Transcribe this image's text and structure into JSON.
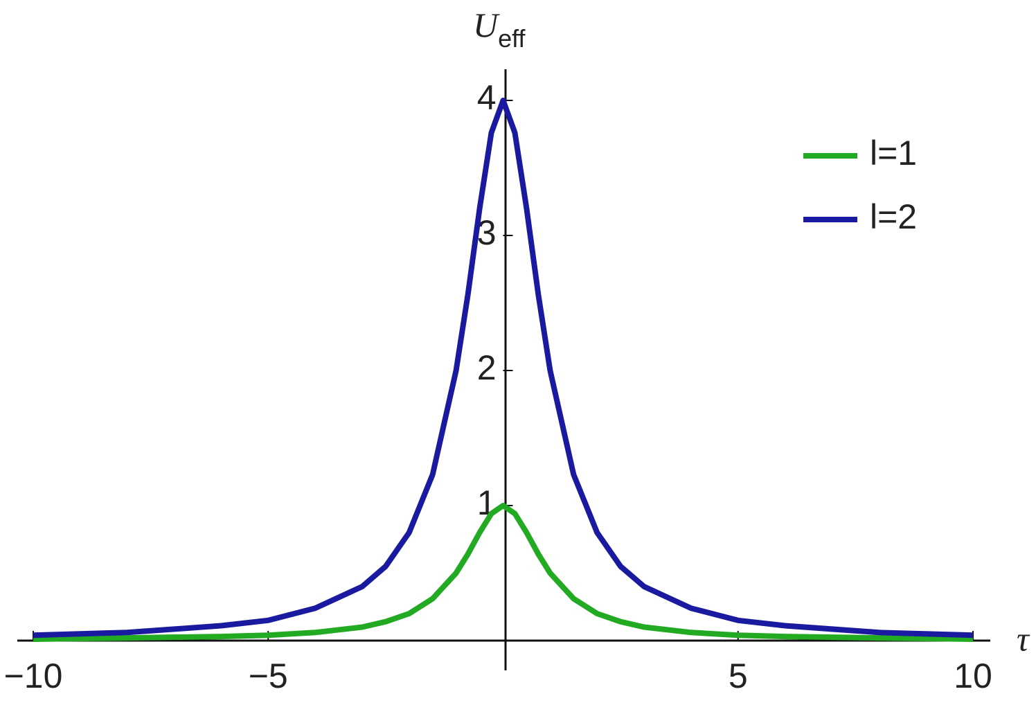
{
  "chart_data": {
    "type": "line",
    "ylabel": {
      "main": "U",
      "sub": "eff"
    },
    "xlabel": "τ",
    "x": [
      -10,
      -8,
      -6,
      -5,
      -4,
      -3,
      -2.5,
      -2,
      -1.5,
      -1,
      -0.75,
      -0.5,
      -0.25,
      0,
      0.25,
      0.5,
      0.75,
      1,
      1.5,
      2,
      2.5,
      3,
      4,
      5,
      6,
      8,
      10
    ],
    "series": [
      {
        "name": "l=1",
        "color": "#22aa22",
        "values": [
          0.01,
          0.02,
          0.03,
          0.04,
          0.06,
          0.1,
          0.14,
          0.2,
          0.31,
          0.5,
          0.64,
          0.8,
          0.94,
          1,
          0.94,
          0.8,
          0.64,
          0.5,
          0.31,
          0.2,
          0.14,
          0.1,
          0.06,
          0.04,
          0.03,
          0.02,
          0.01
        ]
      },
      {
        "name": "l=2",
        "color": "#1a1aa0",
        "values": [
          0.04,
          0.06,
          0.11,
          0.15,
          0.24,
          0.4,
          0.55,
          0.8,
          1.23,
          2,
          2.56,
          3.2,
          3.76,
          4,
          3.76,
          3.2,
          2.56,
          2,
          1.23,
          0.8,
          0.55,
          0.4,
          0.24,
          0.15,
          0.11,
          0.06,
          0.04
        ]
      }
    ],
    "xlim": [
      -10,
      10
    ],
    "ylim": [
      0,
      4.2
    ],
    "xticks": [
      {
        "value": -10,
        "label": "−10"
      },
      {
        "value": -5,
        "label": "−5"
      },
      5,
      10
    ],
    "yticks": [
      1,
      2,
      3,
      4
    ],
    "legend": "top-right",
    "grid": false
  }
}
